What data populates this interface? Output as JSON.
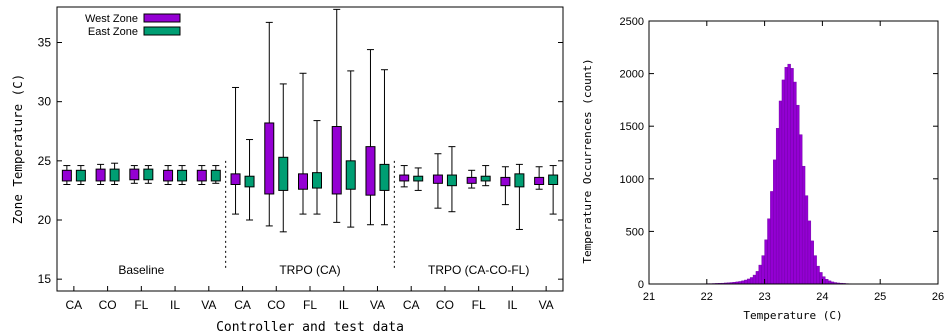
{
  "colors": {
    "west": "#9400d3",
    "east": "#009e73",
    "axis": "#000000"
  },
  "chart_data": [
    {
      "type": "boxplot",
      "xlabel": "Controller and test data",
      "ylabel": "Zone Temperature (C)",
      "ylim": [
        14,
        38
      ],
      "yticks": [
        15,
        20,
        25,
        30,
        35
      ],
      "categories": [
        "CA",
        "CO",
        "FL",
        "IL",
        "VA",
        "CA",
        "CO",
        "FL",
        "IL",
        "VA",
        "CA",
        "CO",
        "FL",
        "IL",
        "VA"
      ],
      "groups": [
        {
          "label": "Baseline",
          "start": 0,
          "end": 4
        },
        {
          "label": "TRPO (CA)",
          "start": 5,
          "end": 9
        },
        {
          "label": "TRPO (CA-CO-FL)",
          "start": 10,
          "end": 14
        }
      ],
      "legend": {
        "position": "top-left"
      },
      "series": [
        {
          "name": "West Zone",
          "boxes": [
            {
              "min": 23.0,
              "q1": 23.3,
              "q3": 24.2,
              "max": 24.6
            },
            {
              "min": 23.0,
              "q1": 23.3,
              "q3": 24.3,
              "max": 24.7
            },
            {
              "min": 23.1,
              "q1": 23.4,
              "q3": 24.3,
              "max": 24.6
            },
            {
              "min": 23.0,
              "q1": 23.3,
              "q3": 24.2,
              "max": 24.6
            },
            {
              "min": 23.0,
              "q1": 23.3,
              "q3": 24.2,
              "max": 24.6
            },
            {
              "min": 20.5,
              "q1": 23.0,
              "q3": 23.9,
              "max": 31.2
            },
            {
              "min": 19.5,
              "q1": 22.2,
              "q3": 28.2,
              "max": 36.7
            },
            {
              "min": 20.5,
              "q1": 22.6,
              "q3": 23.9,
              "max": 32.4
            },
            {
              "min": 19.8,
              "q1": 22.2,
              "q3": 27.9,
              "max": 37.8
            },
            {
              "min": 19.6,
              "q1": 22.1,
              "q3": 26.2,
              "max": 34.4
            },
            {
              "min": 22.8,
              "q1": 23.3,
              "q3": 23.8,
              "max": 24.6
            },
            {
              "min": 21.0,
              "q1": 23.1,
              "q3": 23.8,
              "max": 25.6
            },
            {
              "min": 22.7,
              "q1": 23.1,
              "q3": 23.6,
              "max": 24.2
            },
            {
              "min": 21.3,
              "q1": 22.9,
              "q3": 23.6,
              "max": 24.5
            },
            {
              "min": 22.6,
              "q1": 23.0,
              "q3": 23.6,
              "max": 24.5
            }
          ]
        },
        {
          "name": "East Zone",
          "boxes": [
            {
              "min": 23.0,
              "q1": 23.3,
              "q3": 24.2,
              "max": 24.6
            },
            {
              "min": 23.0,
              "q1": 23.3,
              "q3": 24.3,
              "max": 24.8
            },
            {
              "min": 23.1,
              "q1": 23.4,
              "q3": 24.3,
              "max": 24.6
            },
            {
              "min": 23.0,
              "q1": 23.3,
              "q3": 24.2,
              "max": 24.6
            },
            {
              "min": 23.1,
              "q1": 23.3,
              "q3": 24.2,
              "max": 24.6
            },
            {
              "min": 20.0,
              "q1": 22.8,
              "q3": 23.7,
              "max": 26.8
            },
            {
              "min": 19.0,
              "q1": 22.5,
              "q3": 25.3,
              "max": 31.5
            },
            {
              "min": 20.5,
              "q1": 22.7,
              "q3": 24.0,
              "max": 28.4
            },
            {
              "min": 19.4,
              "q1": 22.6,
              "q3": 25.0,
              "max": 32.6
            },
            {
              "min": 19.6,
              "q1": 22.5,
              "q3": 24.7,
              "max": 32.7
            },
            {
              "min": 22.5,
              "q1": 23.3,
              "q3": 23.7,
              "max": 24.4
            },
            {
              "min": 20.7,
              "q1": 22.9,
              "q3": 23.8,
              "max": 26.2
            },
            {
              "min": 22.9,
              "q1": 23.3,
              "q3": 23.7,
              "max": 24.6
            },
            {
              "min": 19.2,
              "q1": 22.8,
              "q3": 23.9,
              "max": 24.7
            },
            {
              "min": 20.5,
              "q1": 23.0,
              "q3": 23.8,
              "max": 24.6
            }
          ]
        }
      ]
    },
    {
      "type": "bar",
      "subtype": "histogram",
      "xlabel": "Temperature (C)",
      "ylabel": "Temperature Occurrences (count)",
      "xlim": [
        21,
        26
      ],
      "ylim": [
        0,
        2500
      ],
      "xticks": [
        21,
        22,
        23,
        24,
        25,
        26
      ],
      "yticks": [
        0,
        500,
        1000,
        1500,
        2000,
        2500
      ],
      "bin_width": 0.05,
      "x": [
        21.8,
        21.85,
        21.9,
        21.95,
        22.0,
        22.05,
        22.1,
        22.15,
        22.2,
        22.25,
        22.3,
        22.35,
        22.4,
        22.45,
        22.5,
        22.55,
        22.6,
        22.65,
        22.7,
        22.75,
        22.8,
        22.85,
        22.9,
        22.95,
        23.0,
        23.05,
        23.1,
        23.15,
        23.2,
        23.25,
        23.3,
        23.35,
        23.4,
        23.45,
        23.5,
        23.55,
        23.6,
        23.65,
        23.7,
        23.75,
        23.8,
        23.85,
        23.9,
        23.95,
        24.0,
        24.05,
        24.1,
        24.15,
        24.2,
        24.25,
        24.3,
        24.35,
        24.4,
        24.45,
        24.5
      ],
      "values": [
        2,
        2,
        3,
        3,
        4,
        4,
        5,
        6,
        7,
        8,
        10,
        12,
        14,
        17,
        20,
        24,
        30,
        38,
        48,
        62,
        85,
        120,
        180,
        270,
        420,
        620,
        880,
        1180,
        1480,
        1740,
        1940,
        2060,
        2090,
        2050,
        1920,
        1700,
        1420,
        1120,
        840,
        600,
        410,
        270,
        170,
        110,
        70,
        45,
        30,
        20,
        14,
        10,
        8,
        6,
        4,
        3,
        2
      ]
    }
  ]
}
